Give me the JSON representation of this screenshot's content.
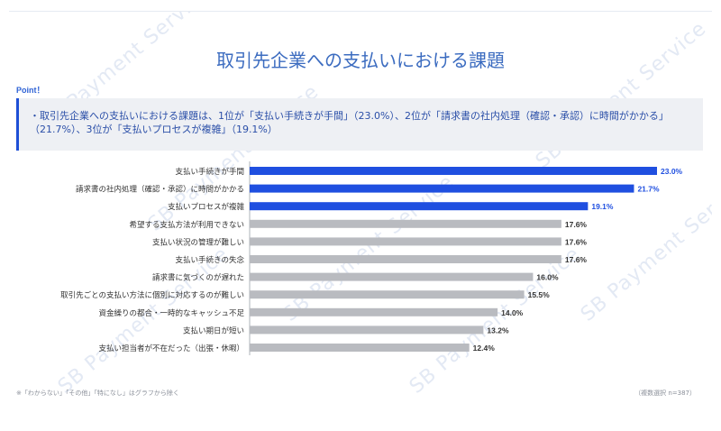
{
  "title": "取引先企業への支払いにおける課題",
  "point": {
    "label": "Point！",
    "bullet": "・",
    "text": "取引先企業への支払いにおける課題は、1位が「支払い手続きが手間」（23.0%）、2位が「請求書の社内処理（確認・承認）に時間がかかる」（21.7%）、3位が「支払いプロセスが複雑」（19.1%）"
  },
  "watermark": "SB Payment Service",
  "footnote": "※「わからない」「その他」「特になし」はグラフから除く",
  "sample_note": "（複数選択 n=387）",
  "colors": {
    "highlight": "#1f4fe0",
    "normal": "#b9bbc0",
    "highlight_label": "#1f4fe0",
    "normal_label": "#333333"
  },
  "chart_data": {
    "type": "bar",
    "orientation": "horizontal",
    "categories": [
      "支払い手続きが手間",
      "請求書の社内処理（確認・承認）に時間がかかる",
      "支払いプロセスが複雑",
      "希望する支払方法が利用できない",
      "支払い状況の管理が難しい",
      "支払い手続きの失念",
      "請求書に気づくのが遅れた",
      "取引先ごとの支払い方法に個別に対応するのが難しい",
      "資金繰りの都合・一時的なキャッシュ不足",
      "支払い期日が短い",
      "支払い担当者が不在だった（出張・休暇）"
    ],
    "values": [
      23.0,
      21.7,
      19.1,
      17.6,
      17.6,
      17.6,
      16.0,
      15.5,
      14.0,
      13.2,
      12.4
    ],
    "value_labels": [
      "23.0%",
      "21.7%",
      "19.1%",
      "17.6%",
      "17.6%",
      "17.6%",
      "16.0%",
      "15.5%",
      "14.0%",
      "13.2%",
      "12.4%"
    ],
    "highlighted": [
      true,
      true,
      true,
      false,
      false,
      false,
      false,
      false,
      false,
      false,
      false
    ],
    "xlim": [
      0,
      23.0
    ],
    "grid": false,
    "legend": "none"
  }
}
